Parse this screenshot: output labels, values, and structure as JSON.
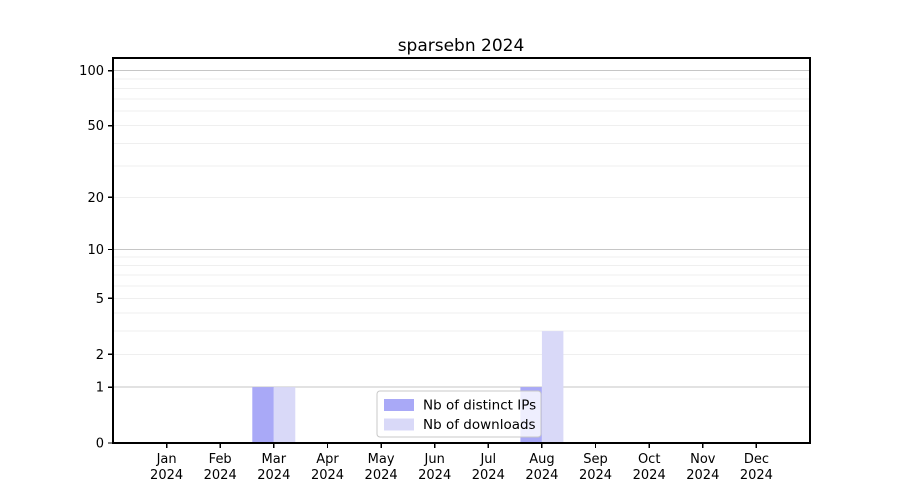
{
  "chart_data": {
    "type": "bar",
    "title": "sparsebn 2024",
    "categories": [
      "Jan",
      "Feb",
      "Mar",
      "Apr",
      "May",
      "Jun",
      "Jul",
      "Aug",
      "Sep",
      "Oct",
      "Nov",
      "Dec"
    ],
    "category_year": "2024",
    "series": [
      {
        "name": "Nb of distinct IPs",
        "color": "#a9a9f7",
        "values": [
          0,
          0,
          1,
          0,
          0,
          0,
          0,
          1,
          0,
          0,
          0,
          0
        ]
      },
      {
        "name": "Nb of downloads",
        "color": "#d9d9f8",
        "values": [
          0,
          0,
          1,
          0,
          0,
          0,
          0,
          3,
          0,
          0,
          0,
          0
        ]
      }
    ],
    "yticks": [
      0,
      1,
      2,
      5,
      10,
      20,
      50,
      100
    ],
    "yscale": "log1p",
    "ylim": [
      0,
      117
    ],
    "xlabel": "",
    "ylabel": "",
    "grid": {
      "on": true,
      "major_ticks": [
        1,
        10,
        100
      ],
      "major_color": "#c6c6c6",
      "minor_color": "#efefef"
    },
    "legend": {
      "position": "inside-bottom-center",
      "background": "#ffffff",
      "opacity": 0.8,
      "border_color": "#c8c8c8"
    },
    "axis_color": "#000000"
  }
}
